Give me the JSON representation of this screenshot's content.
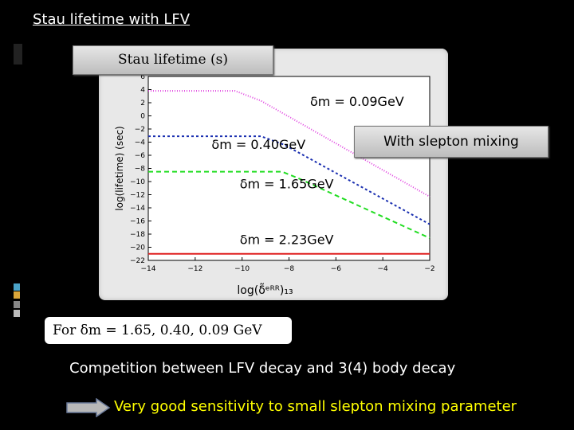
{
  "slide": {
    "title": "Stau lifetime with LFV",
    "stau_box": "Stau lifetime (s)",
    "mixing_box": "With slepton mixing",
    "formula": "For δm = 1.65, 0.40, 0.09 GeV",
    "competition": "Competition between LFV decay and 3(4) body decay",
    "sensitivity": "Very good sensitivity to small slepton mixing parameter"
  },
  "chart_data": {
    "type": "line",
    "xlabel": "log(δ̃ᵉᴿᴿ)₁₃",
    "ylabel": "log(lifetime) (sec)",
    "xlim": [
      -14,
      -2
    ],
    "ylim": [
      -22,
      6
    ],
    "xticks": [
      "−14",
      "−12",
      "−10",
      "−8",
      "−6",
      "−4",
      "−2"
    ],
    "yticks": [
      "6",
      "4",
      "2",
      "0",
      "−2",
      "−4",
      "−6",
      "−8",
      "−10",
      "−12",
      "−14",
      "−16",
      "−18",
      "−20",
      "−22"
    ],
    "series": [
      {
        "name": "δm = 0.09GeV",
        "color": "#e040e0",
        "dash": "1,2",
        "x": [
          -14,
          -10.3,
          -9.2,
          -2
        ],
        "y": [
          3.8,
          3.8,
          2.3,
          -12.3
        ]
      },
      {
        "name": "δm = 0.40GeV",
        "color": "#1a2fb0",
        "dash": "3,3",
        "x": [
          -14,
          -9.2,
          -8.2,
          -2
        ],
        "y": [
          -3.1,
          -3.1,
          -4.4,
          -16.5
        ]
      },
      {
        "name": "δm = 1.65GeV",
        "color": "#22dd22",
        "dash": "6,4",
        "x": [
          -14,
          -8.3,
          -7.6,
          -2
        ],
        "y": [
          -8.5,
          -8.5,
          -9.5,
          -18.6
        ]
      },
      {
        "name": "δm = 2.23GeV",
        "color": "#e02020",
        "dash": "",
        "x": [
          -14,
          -2
        ],
        "y": [
          -21.0,
          -21.0
        ]
      }
    ],
    "annotations": [
      {
        "text": "δm = 0.09GeV",
        "x": -7.1,
        "y": 1.5
      },
      {
        "text": "δm = 0.40GeV",
        "x": -11.3,
        "y": -5.0
      },
      {
        "text": "δm = 1.65GeV",
        "x": -10.1,
        "y": -11.0
      },
      {
        "text": "δm = 2.23GeV",
        "x": -10.1,
        "y": -19.5
      }
    ],
    "grid": false
  }
}
